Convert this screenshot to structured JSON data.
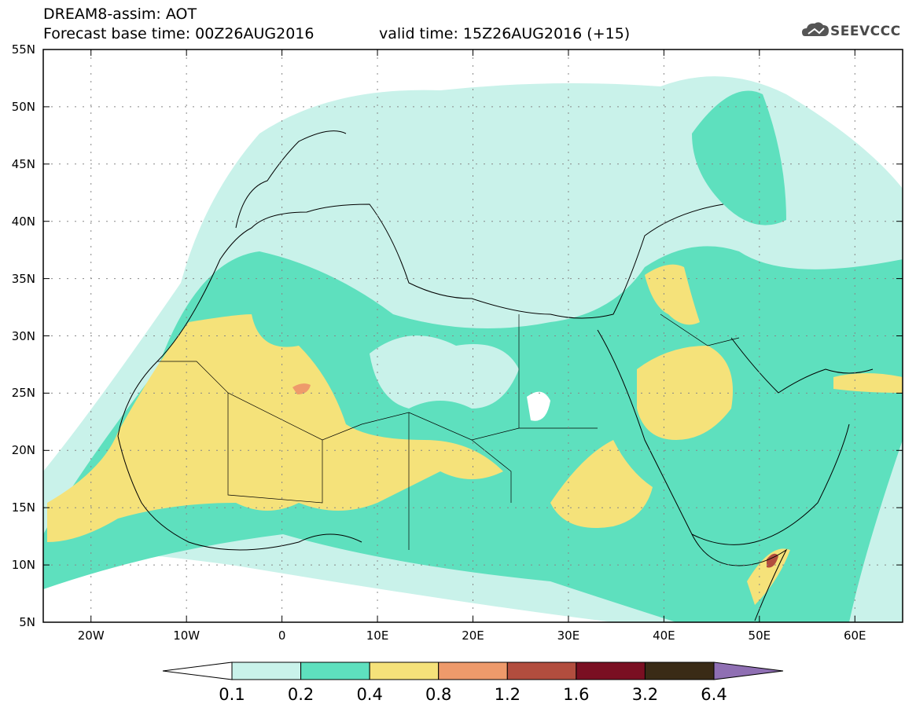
{
  "header": {
    "title": "DREAM8-assim: AOT",
    "base_time": "Forecast base time: 00Z26AUG2016",
    "valid_time": "valid time: 15Z26AUG2016 (+15)",
    "logo_text": "SEEVCCC"
  },
  "map": {
    "lon_range": [
      -25,
      65
    ],
    "lat_range": [
      5,
      55
    ],
    "lat_labels": [
      "55N",
      "50N",
      "45N",
      "40N",
      "35N",
      "30N",
      "25N",
      "20N",
      "15N",
      "10N",
      "5N"
    ],
    "lon_labels": [
      "20W",
      "10W",
      "0",
      "10E",
      "20E",
      "30E",
      "40E",
      "50E",
      "60E"
    ]
  },
  "colorbar": {
    "labels": [
      "0.1",
      "0.2",
      "0.4",
      "0.8",
      "1.2",
      "1.6",
      "3.2",
      "6.4"
    ],
    "colors": [
      "#ffffff",
      "#c9f2ea",
      "#5ee0be",
      "#f5e27a",
      "#ee9a6b",
      "#b24d3e",
      "#7a0f22",
      "#3a2b16",
      "#8f6fb3"
    ]
  },
  "colors": {
    "level1": "#c9f2ea",
    "level2": "#5ee0be",
    "level3": "#f5e27a",
    "level4": "#ee9a6b",
    "level5": "#b24d3e"
  }
}
